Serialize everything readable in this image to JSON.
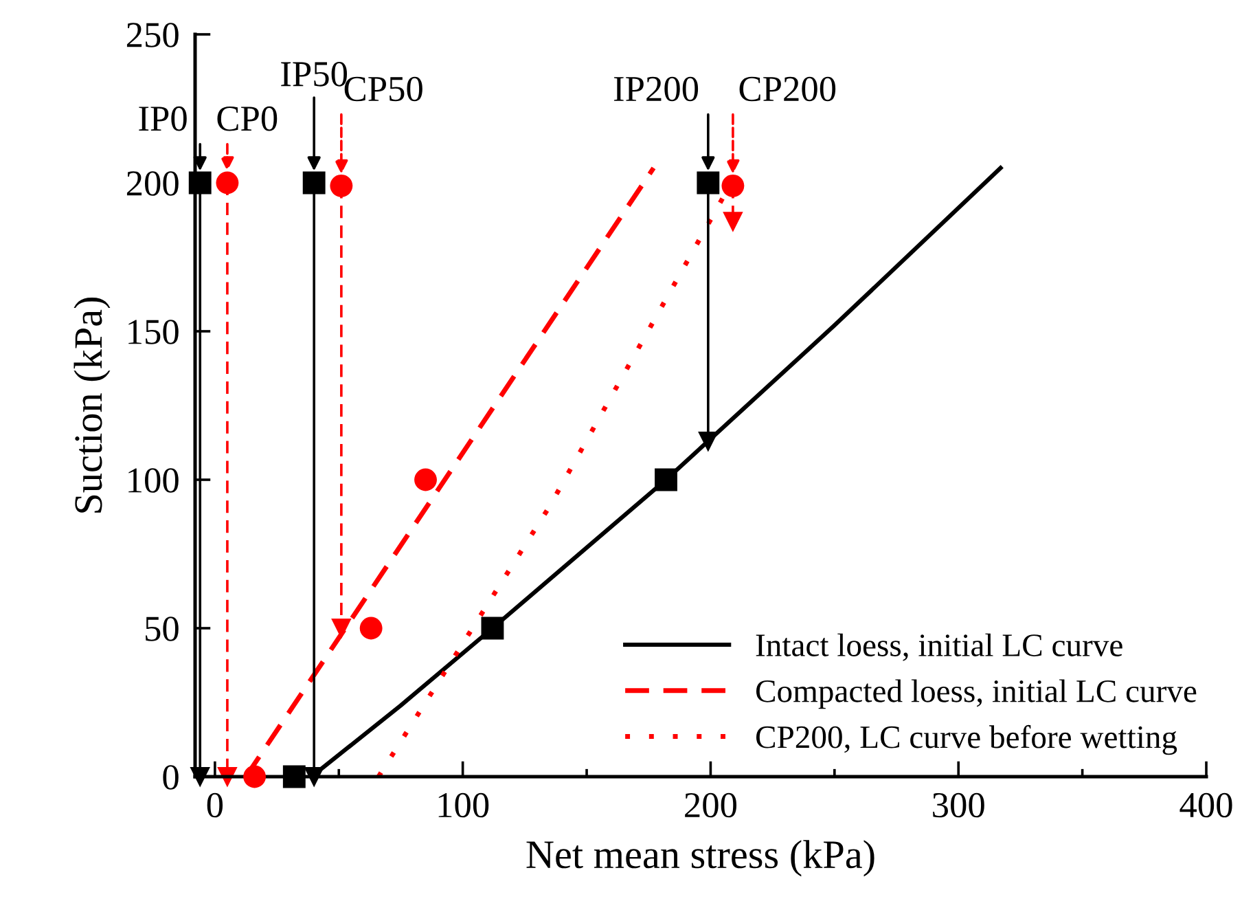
{
  "chart_data": {
    "type": "line",
    "xlabel": "Net mean stress (kPa)",
    "ylabel": "Suction (kPa)",
    "xlim": [
      -8,
      400
    ],
    "ylim": [
      0,
      250
    ],
    "xticks": [
      0,
      {
        "value": 50,
        "label": null
      },
      100,
      {
        "value": 150,
        "label": null
      },
      200,
      {
        "value": 250,
        "label": null
      },
      300,
      {
        "value": 350,
        "label": null
      },
      400
    ],
    "yticks": [
      0,
      50,
      100,
      150,
      200,
      250
    ],
    "grid": false,
    "legend": "bottom right",
    "series": [
      {
        "name": "Intact loess, initial LC curve",
        "color": "#000000",
        "line_style": "solid",
        "marker": "none",
        "x": [
          39,
          75,
          112,
          182,
          250,
          317
        ],
        "values": [
          0,
          24,
          50,
          100,
          152,
          205
        ]
      },
      {
        "name": "Compacted loess, initial LC curve",
        "color": "#ff0000",
        "line_style": "dashed",
        "marker": "none",
        "x": [
          12.5,
          177
        ],
        "values": [
          0,
          205
        ]
      },
      {
        "name": "CP200, LC curve before wetting",
        "color": "#ff0000",
        "line_style": "dotted",
        "marker": "none",
        "x": [
          66,
          135,
          207
        ],
        "values": [
          0,
          91,
          198
        ]
      },
      {
        "color": "#000000",
        "line_style": "solid",
        "marker": "triangle",
        "x": [
          -6,
          -6
        ],
        "values": [
          200,
          0
        ]
      },
      {
        "color": "#ff0000",
        "line_style": "dashed",
        "marker": "triangle",
        "x": [
          5,
          5
        ],
        "values": [
          200,
          0
        ]
      },
      {
        "color": "#000000",
        "line_style": "solid",
        "marker": "triangle",
        "x": [
          40,
          40
        ],
        "values": [
          200,
          0
        ]
      },
      {
        "color": "#ff0000",
        "line_style": "dashed",
        "marker": "triangle",
        "x": [
          51,
          51
        ],
        "values": [
          199,
          50
        ]
      },
      {
        "color": "#000000",
        "line_style": "solid",
        "marker": "triangle",
        "x": [
          199,
          199
        ],
        "values": [
          200,
          113
        ]
      },
      {
        "color": "#ff0000",
        "line_style": "dashed",
        "marker": "triangle",
        "x": [
          209,
          209
        ],
        "values": [
          199,
          187
        ]
      },
      {
        "type": "scatter",
        "color": "#000000",
        "marker": "square",
        "x": [
          -6,
          40,
          199,
          32,
          112,
          182
        ],
        "values": [
          200,
          200,
          200,
          0,
          50,
          100
        ]
      },
      {
        "type": "scatter",
        "color": "#ff0000",
        "marker": "circle",
        "x": [
          5,
          51,
          209,
          16,
          63,
          85
        ],
        "values": [
          200,
          199,
          199,
          0,
          50,
          100
        ]
      }
    ],
    "annotations": [
      {
        "text": "IP0",
        "x": -6,
        "y": 200
      },
      {
        "text": "CP0",
        "x": 5,
        "y": 200
      },
      {
        "text": "IP50",
        "x": 40,
        "y": 200
      },
      {
        "text": "CP50",
        "x": 51,
        "y": 199
      },
      {
        "text": "IP200",
        "x": 199,
        "y": 200
      },
      {
        "text": "CP200",
        "x": 209,
        "y": 199
      }
    ]
  }
}
